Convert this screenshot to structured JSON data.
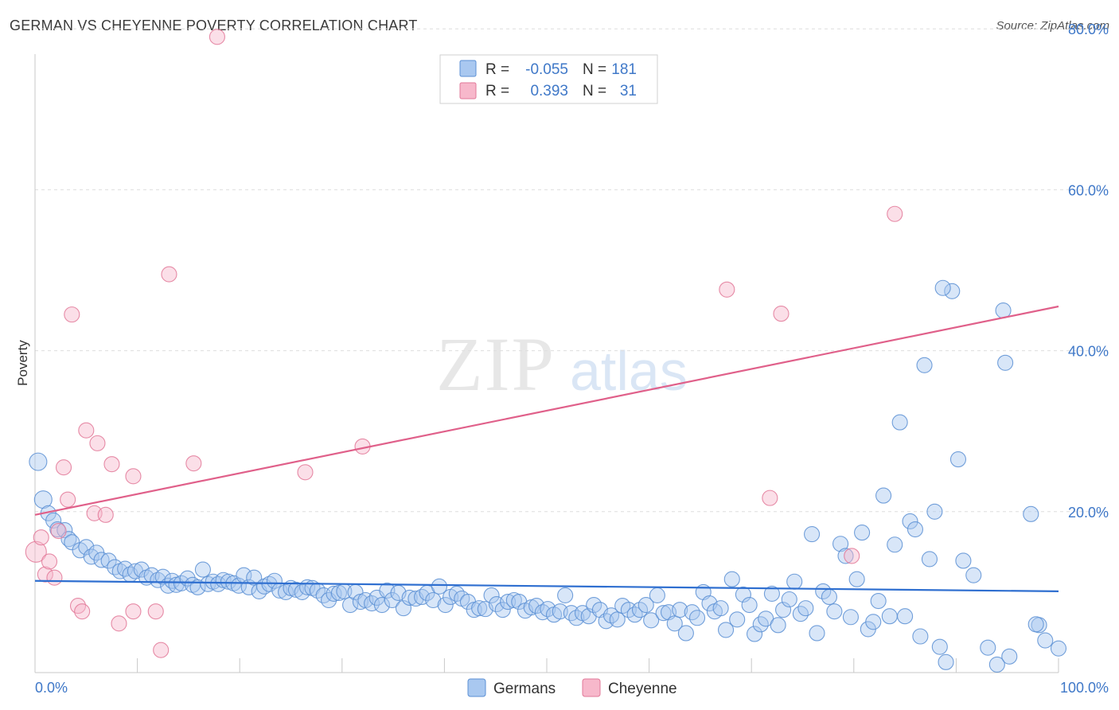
{
  "header": {
    "title": "GERMAN VS CHEYENNE POVERTY CORRELATION CHART",
    "source": "Source: ZipAtlas.com"
  },
  "watermark": {
    "zip": "ZIP",
    "atlas": "atlas"
  },
  "legend": {
    "rows": [
      {
        "r_label": "R =",
        "r_value": "-0.055",
        "n_label": "N =",
        "n_value": "181",
        "color": "#a9c8f0",
        "stroke": "#5b8fd4"
      },
      {
        "r_label": "R =",
        "r_value": "0.393",
        "n_label": "N =",
        "n_value": "31",
        "color": "#f7b8cb",
        "stroke": "#e27898"
      }
    ]
  },
  "bottom_legend": {
    "items": [
      {
        "label": "Germans",
        "color": "#a9c8f0",
        "stroke": "#5b8fd4"
      },
      {
        "label": "Cheyenne",
        "color": "#f7b8cb",
        "stroke": "#e27898"
      }
    ]
  },
  "chart_data": {
    "type": "scatter",
    "title": "GERMAN VS CHEYENNE POVERTY CORRELATION CHART",
    "xlabel": "",
    "ylabel": "Poverty",
    "xlim": [
      0,
      100
    ],
    "ylim": [
      0,
      82
    ],
    "x_tick_labels": [
      "0.0%",
      "100.0%"
    ],
    "y_ticks": [
      20,
      40,
      60,
      80
    ],
    "y_tick_labels": [
      "20.0%",
      "40.0%",
      "60.0%",
      "80.0%"
    ],
    "grid": true,
    "legend_position": "top-center",
    "series": [
      {
        "name": "Germans",
        "color": "#5b8fd4",
        "fill": "#a9c8f0",
        "trend": {
          "x": [
            0,
            100
          ],
          "y": [
            11.4,
            10.1
          ],
          "color": "#2f6fd0"
        },
        "points": [
          [
            0.3,
            26.2
          ],
          [
            0.8,
            21.5
          ],
          [
            1.3,
            19.8
          ],
          [
            1.8,
            18.9
          ],
          [
            2.2,
            17.8
          ],
          [
            2.9,
            17.7
          ],
          [
            3.3,
            16.6
          ],
          [
            3.6,
            16.2
          ],
          [
            4.4,
            15.2
          ],
          [
            5.0,
            15.6
          ],
          [
            5.5,
            14.4
          ],
          [
            6.0,
            14.9
          ],
          [
            6.5,
            14.0
          ],
          [
            7.2,
            13.9
          ],
          [
            7.8,
            13.1
          ],
          [
            8.3,
            12.6
          ],
          [
            8.8,
            12.9
          ],
          [
            9.3,
            12.2
          ],
          [
            9.8,
            12.6
          ],
          [
            10.4,
            12.8
          ],
          [
            10.9,
            11.8
          ],
          [
            11.4,
            12.1
          ],
          [
            12.0,
            11.5
          ],
          [
            12.5,
            11.9
          ],
          [
            13.0,
            10.8
          ],
          [
            13.4,
            11.4
          ],
          [
            13.8,
            10.9
          ],
          [
            14.3,
            11.1
          ],
          [
            14.9,
            11.7
          ],
          [
            15.4,
            10.9
          ],
          [
            15.9,
            10.6
          ],
          [
            16.4,
            12.8
          ],
          [
            16.9,
            11.0
          ],
          [
            17.4,
            11.3
          ],
          [
            17.9,
            11.0
          ],
          [
            18.4,
            11.5
          ],
          [
            18.9,
            11.3
          ],
          [
            19.4,
            11.1
          ],
          [
            19.9,
            10.8
          ],
          [
            20.4,
            12.1
          ],
          [
            20.9,
            10.6
          ],
          [
            21.4,
            11.8
          ],
          [
            21.9,
            10.1
          ],
          [
            22.4,
            10.7
          ],
          [
            22.9,
            11.0
          ],
          [
            23.4,
            11.4
          ],
          [
            23.9,
            10.2
          ],
          [
            24.5,
            10.0
          ],
          [
            25.0,
            10.5
          ],
          [
            25.5,
            10.3
          ],
          [
            26.1,
            10.0
          ],
          [
            26.6,
            10.6
          ],
          [
            27.1,
            10.5
          ],
          [
            27.6,
            10.2
          ],
          [
            28.2,
            9.6
          ],
          [
            28.7,
            9.0
          ],
          [
            29.2,
            9.8
          ],
          [
            29.7,
            9.9
          ],
          [
            30.2,
            10.1
          ],
          [
            30.8,
            8.4
          ],
          [
            31.3,
            10.0
          ],
          [
            31.8,
            8.8
          ],
          [
            32.3,
            9.0
          ],
          [
            32.9,
            8.6
          ],
          [
            33.4,
            9.3
          ],
          [
            33.9,
            8.4
          ],
          [
            34.4,
            10.2
          ],
          [
            34.9,
            9.0
          ],
          [
            35.5,
            9.9
          ],
          [
            36.0,
            8.0
          ],
          [
            36.6,
            9.3
          ],
          [
            37.2,
            9.2
          ],
          [
            37.8,
            9.4
          ],
          [
            38.3,
            9.9
          ],
          [
            38.9,
            9.0
          ],
          [
            39.5,
            10.7
          ],
          [
            40.1,
            8.4
          ],
          [
            40.6,
            9.4
          ],
          [
            41.2,
            9.8
          ],
          [
            41.7,
            9.2
          ],
          [
            42.3,
            8.8
          ],
          [
            42.9,
            7.8
          ],
          [
            43.4,
            8.0
          ],
          [
            44.0,
            7.9
          ],
          [
            44.6,
            9.6
          ],
          [
            45.1,
            8.5
          ],
          [
            45.7,
            7.8
          ],
          [
            46.2,
            8.8
          ],
          [
            46.8,
            9.0
          ],
          [
            47.3,
            8.8
          ],
          [
            47.9,
            7.7
          ],
          [
            48.5,
            8.1
          ],
          [
            49.0,
            8.3
          ],
          [
            49.6,
            7.5
          ],
          [
            50.1,
            7.9
          ],
          [
            50.7,
            7.2
          ],
          [
            51.3,
            7.6
          ],
          [
            51.8,
            9.6
          ],
          [
            52.4,
            7.4
          ],
          [
            52.9,
            6.8
          ],
          [
            53.5,
            7.4
          ],
          [
            54.1,
            7.0
          ],
          [
            54.6,
            8.4
          ],
          [
            55.2,
            7.8
          ],
          [
            55.8,
            6.4
          ],
          [
            56.3,
            7.1
          ],
          [
            56.9,
            6.6
          ],
          [
            57.4,
            8.3
          ],
          [
            58.0,
            7.8
          ],
          [
            58.6,
            7.2
          ],
          [
            59.1,
            7.8
          ],
          [
            59.7,
            8.4
          ],
          [
            60.2,
            6.5
          ],
          [
            60.8,
            9.6
          ],
          [
            61.4,
            7.4
          ],
          [
            61.9,
            7.5
          ],
          [
            62.5,
            6.1
          ],
          [
            63.0,
            7.8
          ],
          [
            63.6,
            4.9
          ],
          [
            64.2,
            7.5
          ],
          [
            64.7,
            6.8
          ],
          [
            65.3,
            10.0
          ],
          [
            65.9,
            8.6
          ],
          [
            66.4,
            7.6
          ],
          [
            67.0,
            8.0
          ],
          [
            67.5,
            5.3
          ],
          [
            68.1,
            11.6
          ],
          [
            68.6,
            6.6
          ],
          [
            69.2,
            9.7
          ],
          [
            69.8,
            8.4
          ],
          [
            70.3,
            4.8
          ],
          [
            70.9,
            6.0
          ],
          [
            71.4,
            6.7
          ],
          [
            72.0,
            9.8
          ],
          [
            72.6,
            5.9
          ],
          [
            73.1,
            7.8
          ],
          [
            73.7,
            9.1
          ],
          [
            74.2,
            11.3
          ],
          [
            74.8,
            7.3
          ],
          [
            75.3,
            8.0
          ],
          [
            75.9,
            17.2
          ],
          [
            76.4,
            4.9
          ],
          [
            77.0,
            10.1
          ],
          [
            77.6,
            9.4
          ],
          [
            78.1,
            7.6
          ],
          [
            78.7,
            16.0
          ],
          [
            79.2,
            14.5
          ],
          [
            79.7,
            6.9
          ],
          [
            80.3,
            11.6
          ],
          [
            80.8,
            17.4
          ],
          [
            81.4,
            5.4
          ],
          [
            81.9,
            6.3
          ],
          [
            82.4,
            8.9
          ],
          [
            82.9,
            22.0
          ],
          [
            83.5,
            7.0
          ],
          [
            84.0,
            15.9
          ],
          [
            84.5,
            31.1
          ],
          [
            85.0,
            7.0
          ],
          [
            85.5,
            18.8
          ],
          [
            86.0,
            17.8
          ],
          [
            86.5,
            4.5
          ],
          [
            86.9,
            38.2
          ],
          [
            87.4,
            14.1
          ],
          [
            87.9,
            20.0
          ],
          [
            88.4,
            3.2
          ],
          [
            89.0,
            1.3
          ],
          [
            89.6,
            47.4
          ],
          [
            90.2,
            26.5
          ],
          [
            90.7,
            13.9
          ],
          [
            91.7,
            12.1
          ],
          [
            93.1,
            3.1
          ],
          [
            94.0,
            1.0
          ],
          [
            95.2,
            2.0
          ],
          [
            97.3,
            19.7
          ],
          [
            94.6,
            45.0
          ],
          [
            94.8,
            38.5
          ],
          [
            98.1,
            5.9
          ],
          [
            97.8,
            6.0
          ],
          [
            98.7,
            4.0
          ],
          [
            100.0,
            3.0
          ],
          [
            88.7,
            47.8
          ]
        ]
      },
      {
        "name": "Cheyenne",
        "color": "#e27898",
        "fill": "#f7b8cb",
        "trend": {
          "x": [
            0,
            100
          ],
          "y": [
            19.6,
            45.5
          ],
          "color": "#e0608a"
        },
        "points": [
          [
            0.1,
            15.0
          ],
          [
            0.6,
            16.8
          ],
          [
            1.0,
            12.2
          ],
          [
            1.4,
            13.8
          ],
          [
            1.9,
            11.8
          ],
          [
            2.3,
            17.6
          ],
          [
            2.8,
            25.5
          ],
          [
            3.2,
            21.5
          ],
          [
            3.6,
            44.5
          ],
          [
            4.2,
            8.3
          ],
          [
            4.6,
            7.6
          ],
          [
            5.0,
            30.1
          ],
          [
            6.1,
            28.5
          ],
          [
            5.8,
            19.8
          ],
          [
            6.9,
            19.6
          ],
          [
            7.5,
            25.9
          ],
          [
            8.2,
            6.1
          ],
          [
            9.6,
            24.4
          ],
          [
            9.6,
            7.6
          ],
          [
            11.8,
            7.6
          ],
          [
            12.3,
            2.8
          ],
          [
            13.1,
            49.5
          ],
          [
            15.5,
            26.0
          ],
          [
            17.8,
            79.0
          ],
          [
            26.4,
            24.9
          ],
          [
            32.0,
            28.1
          ],
          [
            67.6,
            47.6
          ],
          [
            71.8,
            21.7
          ],
          [
            72.9,
            44.6
          ],
          [
            79.8,
            14.5
          ],
          [
            84.0,
            57.0
          ]
        ]
      }
    ]
  }
}
